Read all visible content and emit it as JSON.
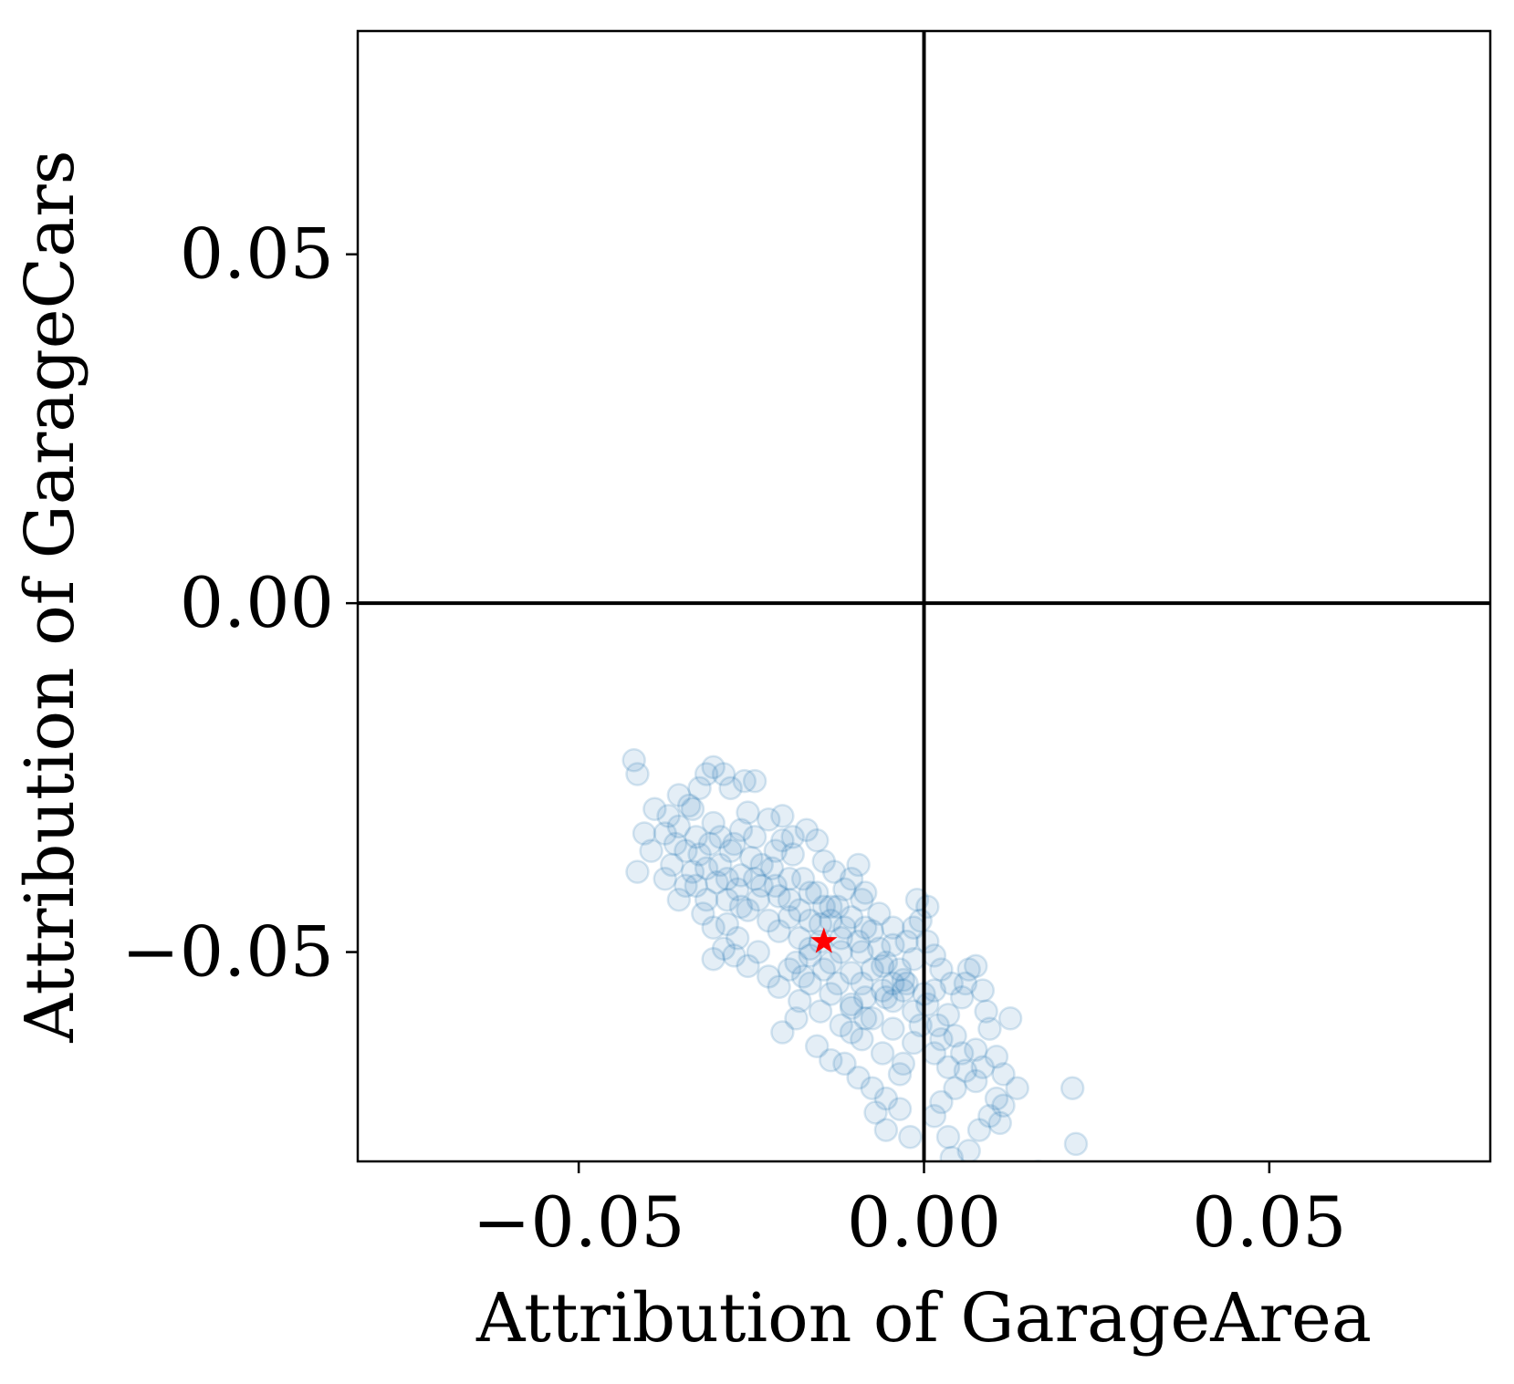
{
  "chart_data": {
    "type": "scatter",
    "title": "",
    "xlabel": "Attribution of GarageArea",
    "ylabel": "Attribution of GarageCars",
    "xlim": [
      -0.082,
      0.082
    ],
    "ylim": [
      -0.08,
      0.082
    ],
    "xticks": [
      -0.05,
      0.0,
      0.05
    ],
    "yticks": [
      -0.05,
      0.0,
      0.05
    ],
    "xtick_labels": [
      "−0.05",
      "0.00",
      "0.05"
    ],
    "ytick_labels": [
      "−0.05",
      "0.00",
      "0.05"
    ],
    "zero_lines": true,
    "grid": false,
    "legend": "none",
    "series": [
      {
        "marker": "hollow-circle",
        "color": "#1f77b4",
        "alpha": 0.12,
        "points": [
          [
            -0.042,
            -0.0225
          ],
          [
            -0.0415,
            -0.0245
          ],
          [
            -0.0405,
            -0.033
          ],
          [
            -0.0415,
            -0.0385
          ],
          [
            -0.039,
            -0.0295
          ],
          [
            -0.037,
            -0.0305
          ],
          [
            -0.0355,
            -0.032
          ],
          [
            -0.034,
            -0.029
          ],
          [
            -0.0305,
            -0.0235
          ],
          [
            -0.029,
            -0.0245
          ],
          [
            -0.028,
            -0.0265
          ],
          [
            -0.026,
            -0.0255
          ],
          [
            -0.0245,
            -0.0255
          ],
          [
            -0.0255,
            -0.03
          ],
          [
            -0.0225,
            -0.031
          ],
          [
            -0.0205,
            -0.034
          ],
          [
            -0.019,
            -0.036
          ],
          [
            -0.017,
            -0.0325
          ],
          [
            -0.0155,
            -0.034
          ],
          [
            -0.0145,
            -0.037
          ],
          [
            -0.013,
            -0.0385
          ],
          [
            -0.0115,
            -0.041
          ],
          [
            -0.0095,
            -0.0375
          ],
          [
            -0.009,
            -0.0425
          ],
          [
            -0.033,
            -0.0335
          ],
          [
            -0.0325,
            -0.036
          ],
          [
            -0.031,
            -0.0345
          ],
          [
            -0.0295,
            -0.0375
          ],
          [
            -0.028,
            -0.0355
          ],
          [
            -0.0265,
            -0.039
          ],
          [
            -0.025,
            -0.0365
          ],
          [
            -0.0235,
            -0.0405
          ],
          [
            -0.022,
            -0.038
          ],
          [
            -0.021,
            -0.042
          ],
          [
            -0.0195,
            -0.0395
          ],
          [
            -0.018,
            -0.044
          ],
          [
            -0.0165,
            -0.0415
          ],
          [
            -0.015,
            -0.046
          ],
          [
            -0.0135,
            -0.0435
          ],
          [
            -0.012,
            -0.048
          ],
          [
            -0.0105,
            -0.045
          ],
          [
            -0.009,
            -0.05
          ],
          [
            -0.0075,
            -0.047
          ],
          [
            -0.006,
            -0.052
          ],
          [
            -0.0045,
            -0.049
          ],
          [
            -0.003,
            -0.054
          ],
          [
            -0.0015,
            -0.051
          ],
          [
            0.0,
            -0.056
          ],
          [
            -0.03,
            -0.04
          ],
          [
            -0.0285,
            -0.0425
          ],
          [
            -0.027,
            -0.041
          ],
          [
            -0.0255,
            -0.044
          ],
          [
            -0.024,
            -0.0425
          ],
          [
            -0.0225,
            -0.0455
          ],
          [
            -0.021,
            -0.047
          ],
          [
            -0.0195,
            -0.045
          ],
          [
            -0.018,
            -0.048
          ],
          [
            -0.0165,
            -0.0495
          ],
          [
            -0.015,
            -0.0485
          ],
          [
            -0.0135,
            -0.0515
          ],
          [
            -0.012,
            -0.05
          ],
          [
            -0.0105,
            -0.053
          ],
          [
            -0.009,
            -0.0545
          ],
          [
            -0.0075,
            -0.0525
          ],
          [
            -0.006,
            -0.0555
          ],
          [
            -0.0045,
            -0.057
          ],
          [
            -0.003,
            -0.0555
          ],
          [
            -0.0015,
            -0.0585
          ],
          [
            -0.033,
            -0.0405
          ],
          [
            -0.0315,
            -0.038
          ],
          [
            -0.0345,
            -0.0355
          ],
          [
            -0.036,
            -0.0345
          ],
          [
            -0.0375,
            -0.033
          ],
          [
            -0.0395,
            -0.0355
          ],
          [
            -0.0285,
            -0.046
          ],
          [
            -0.027,
            -0.048
          ],
          [
            -0.0305,
            -0.051
          ],
          [
            -0.0255,
            -0.052
          ],
          [
            -0.024,
            -0.05
          ],
          [
            -0.0225,
            -0.0535
          ],
          [
            -0.021,
            -0.055
          ],
          [
            -0.0195,
            -0.0525
          ],
          [
            -0.018,
            -0.057
          ],
          [
            -0.0165,
            -0.0545
          ],
          [
            -0.015,
            -0.0585
          ],
          [
            -0.0135,
            -0.056
          ],
          [
            -0.012,
            -0.0605
          ],
          [
            -0.0105,
            -0.058
          ],
          [
            -0.009,
            -0.0625
          ],
          [
            -0.0075,
            -0.0595
          ],
          [
            -0.006,
            -0.0645
          ],
          [
            -0.0045,
            -0.061
          ],
          [
            -0.003,
            -0.066
          ],
          [
            -0.0015,
            -0.063
          ],
          [
            -0.0115,
            -0.066
          ],
          [
            -0.0095,
            -0.068
          ],
          [
            -0.0075,
            -0.0695
          ],
          [
            -0.0055,
            -0.071
          ],
          [
            -0.0035,
            -0.0675
          ],
          [
            -0.007,
            -0.073
          ],
          [
            -0.0055,
            -0.0755
          ],
          [
            -0.0035,
            -0.0725
          ],
          [
            -0.002,
            -0.0765
          ],
          [
            0.0015,
            -0.0645
          ],
          [
            0.002,
            -0.0605
          ],
          [
            0.0035,
            -0.059
          ],
          [
            0.0045,
            -0.062
          ],
          [
            0.006,
            -0.0545
          ],
          [
            0.0075,
            -0.052
          ],
          [
            0.0085,
            -0.0555
          ],
          [
            0.009,
            -0.0585
          ],
          [
            0.0095,
            -0.061
          ],
          [
            0.0075,
            -0.064
          ],
          [
            0.006,
            -0.067
          ],
          [
            0.0045,
            -0.0695
          ],
          [
            0.0025,
            -0.0715
          ],
          [
            0.0105,
            -0.065
          ],
          [
            0.0115,
            -0.0675
          ],
          [
            0.0125,
            -0.0595
          ],
          [
            0.0105,
            -0.071
          ],
          [
            0.0095,
            -0.0735
          ],
          [
            0.008,
            -0.0755
          ],
          [
            0.0065,
            -0.0785
          ],
          [
            0.011,
            -0.0745
          ],
          [
            0.0135,
            -0.0695
          ],
          [
            0.0115,
            -0.072
          ],
          [
            0.0035,
            -0.0765
          ],
          [
            0.004,
            -0.0795
          ],
          [
            0.0015,
            -0.0735
          ],
          [
            -0.001,
            -0.0425
          ],
          [
            0.0005,
            -0.0435
          ],
          [
            -0.0005,
            -0.0455
          ],
          [
            0.0025,
            -0.0525
          ],
          [
            0.004,
            -0.0545
          ],
          [
            0.0055,
            -0.0565
          ],
          [
            0.0065,
            -0.0525
          ],
          [
            -0.0205,
            -0.0615
          ],
          [
            -0.0185,
            -0.0595
          ],
          [
            -0.0155,
            -0.0635
          ],
          [
            -0.0135,
            -0.0655
          ],
          [
            -0.032,
            -0.0445
          ],
          [
            -0.0305,
            -0.0465
          ],
          [
            -0.029,
            -0.0495
          ],
          [
            -0.0275,
            -0.0505
          ],
          [
            -0.0325,
            -0.0265
          ],
          [
            -0.0315,
            -0.0245
          ],
          [
            -0.0355,
            -0.0275
          ],
          [
            -0.0335,
            -0.0295
          ],
          [
            0.022,
            -0.0775
          ],
          [
            0.0215,
            -0.0695
          ],
          [
            0.0165,
            -0.0815
          ],
          [
            0.0205,
            -0.0825
          ],
          [
            -0.0205,
            -0.0305
          ],
          [
            -0.019,
            -0.0335
          ],
          [
            -0.0215,
            -0.0355
          ],
          [
            -0.0245,
            -0.0335
          ],
          [
            -0.0265,
            -0.0325
          ],
          [
            -0.0275,
            -0.0345
          ],
          [
            -0.0295,
            -0.0335
          ],
          [
            -0.0305,
            -0.0315
          ],
          [
            -0.0135,
            -0.0455
          ],
          [
            -0.0125,
            -0.0435
          ],
          [
            -0.0115,
            -0.0465
          ],
          [
            -0.0095,
            -0.0485
          ],
          [
            -0.0085,
            -0.0465
          ],
          [
            -0.0065,
            -0.0495
          ],
          [
            -0.0055,
            -0.0515
          ],
          [
            -0.0035,
            -0.0525
          ],
          [
            -0.0045,
            -0.0545
          ],
          [
            -0.0025,
            -0.0545
          ],
          [
            -0.0055,
            -0.0565
          ],
          [
            -0.0085,
            -0.0565
          ],
          [
            -0.0145,
            -0.0525
          ],
          [
            -0.0165,
            -0.0505
          ],
          [
            -0.0185,
            -0.0515
          ],
          [
            -0.0175,
            -0.0535
          ],
          [
            -0.0125,
            -0.0545
          ],
          [
            -0.0105,
            -0.0575
          ],
          [
            -0.0085,
            -0.0595
          ],
          [
            -0.0105,
            -0.0615
          ],
          [
            -0.0245,
            -0.0395
          ],
          [
            -0.0235,
            -0.0375
          ],
          [
            -0.0215,
            -0.0405
          ],
          [
            -0.0195,
            -0.0425
          ],
          [
            -0.0175,
            -0.0395
          ],
          [
            -0.0155,
            -0.0415
          ],
          [
            -0.0145,
            -0.0435
          ],
          [
            -0.0165,
            -0.0455
          ],
          [
            -0.0265,
            -0.0435
          ],
          [
            -0.0285,
            -0.0395
          ],
          [
            -0.0315,
            -0.0425
          ],
          [
            -0.0335,
            -0.0385
          ],
          [
            -0.0345,
            -0.0405
          ],
          [
            -0.0365,
            -0.0375
          ],
          [
            -0.0375,
            -0.0395
          ],
          [
            -0.0355,
            -0.0425
          ],
          [
            0.0005,
            -0.0575
          ],
          [
            0.0015,
            -0.0555
          ],
          [
            -0.0005,
            -0.0605
          ],
          [
            0.0025,
            -0.0625
          ],
          [
            0.0035,
            -0.0665
          ],
          [
            0.0055,
            -0.0645
          ],
          [
            0.0075,
            -0.0685
          ],
          [
            0.0085,
            -0.0665
          ],
          [
            -0.0105,
            -0.0395
          ],
          [
            -0.0085,
            -0.0415
          ],
          [
            -0.0065,
            -0.0445
          ],
          [
            -0.0045,
            -0.0465
          ],
          [
            -0.0025,
            -0.0485
          ],
          [
            -0.0015,
            -0.0465
          ],
          [
            0.0005,
            -0.0485
          ],
          [
            0.0015,
            -0.0505
          ]
        ]
      },
      {
        "marker": "star",
        "color": "#ff0000",
        "points": [
          [
            -0.0145,
            -0.0485
          ]
        ]
      }
    ]
  }
}
